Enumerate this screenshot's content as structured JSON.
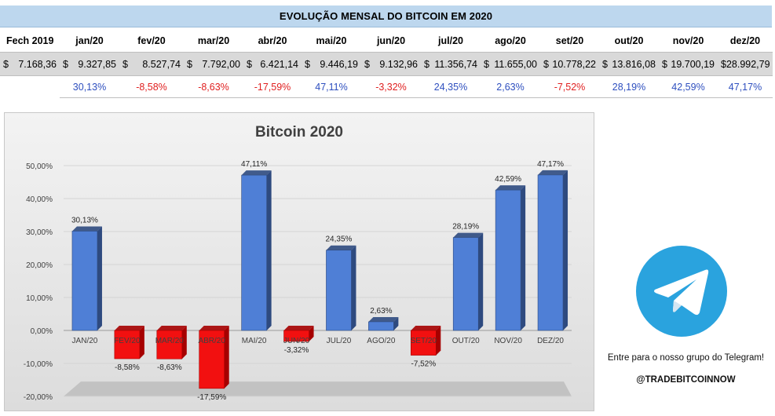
{
  "table": {
    "title": "EVOLUÇÃO MENSAL DO BITCOIN EM 2020",
    "headers": [
      "Fech 2019",
      "jan/20",
      "fev/20",
      "mar/20",
      "abr/20",
      "mai/20",
      "jun/20",
      "jul/20",
      "ago/20",
      "set/20",
      "out/20",
      "nov/20",
      "dez/20"
    ],
    "prices": [
      {
        "cur": "$",
        "val": "7.168,36"
      },
      {
        "cur": "$",
        "val": "9.327,85"
      },
      {
        "cur": "$",
        "val": "8.527,74"
      },
      {
        "cur": "$",
        "val": "7.792,00"
      },
      {
        "cur": "$",
        "val": "6.421,14"
      },
      {
        "cur": "$",
        "val": "9.446,19"
      },
      {
        "cur": "$",
        "val": "9.132,96"
      },
      {
        "cur": "$",
        "val": "11.356,74"
      },
      {
        "cur": "$",
        "val": "11.655,00"
      },
      {
        "cur": "$",
        "val": "10.778,22"
      },
      {
        "cur": "$",
        "val": "13.816,08"
      },
      {
        "cur": "$",
        "val": "19.700,19"
      },
      {
        "cur": "$",
        "val": "28.992,79"
      }
    ],
    "changes": [
      "",
      "30,13%",
      "-8,58%",
      "-8,63%",
      "-17,59%",
      "47,11%",
      "-3,32%",
      "24,35%",
      "2,63%",
      "-7,52%",
      "28,19%",
      "42,59%",
      "47,17%"
    ]
  },
  "chart_data": {
    "type": "bar",
    "title": "Bitcoin 2020",
    "categories": [
      "JAN/20",
      "FEV/20",
      "MAR/20",
      "ABR/20",
      "MAI/20",
      "JUN/20",
      "JUL/20",
      "AGO/20",
      "SET/20",
      "OUT/20",
      "NOV/20",
      "DEZ/20"
    ],
    "values": [
      30.13,
      -8.58,
      -8.63,
      -17.59,
      47.11,
      -3.32,
      24.35,
      2.63,
      -7.52,
      28.19,
      42.59,
      47.17
    ],
    "data_labels": [
      "30,13%",
      "-8,58%",
      "-8,63%",
      "-17,59%",
      "47,11%",
      "-3,32%",
      "24,35%",
      "2,63%",
      "-7,52%",
      "28,19%",
      "42,59%",
      "47,17%"
    ],
    "y_ticks": [
      50,
      40,
      30,
      20,
      10,
      0,
      -10,
      -20
    ],
    "y_tick_labels": [
      "50,00%",
      "40,00%",
      "30,00%",
      "20,00%",
      "10,00%",
      "0,00%",
      "-10,00%",
      "-20,00%"
    ],
    "ylim": [
      -20,
      50
    ],
    "grid": true,
    "colors": {
      "positive": "#4f7fd6",
      "positive_dark": "#2e4a7f",
      "negative": "#f21010",
      "negative_dark": "#a60000"
    }
  },
  "promo": {
    "icon": "telegram-icon",
    "text": "Entre para o nosso grupo do Telegram!",
    "handle": "@TRADEBITCOINNOW"
  }
}
